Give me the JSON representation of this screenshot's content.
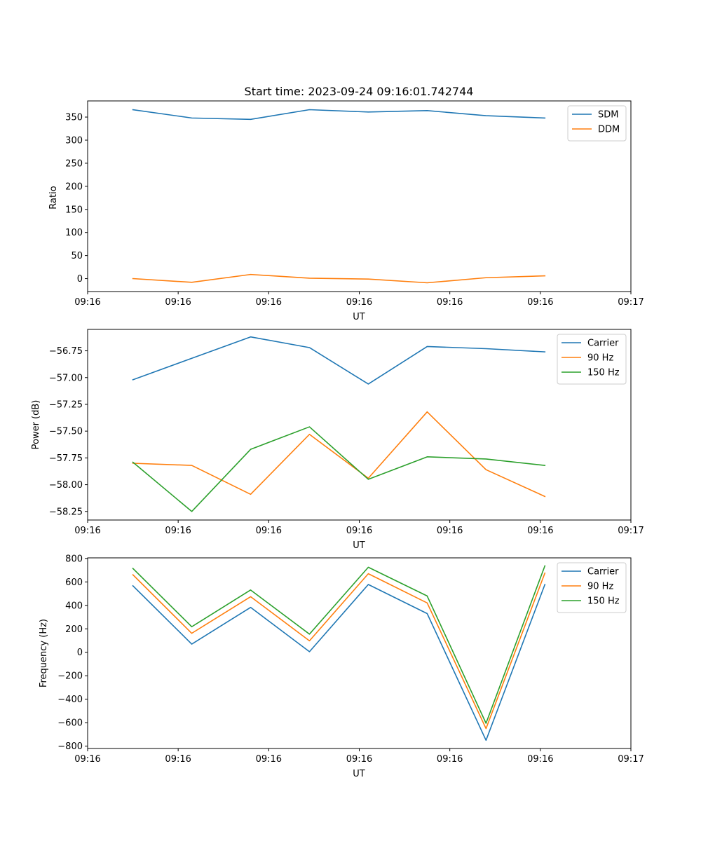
{
  "chart_data": [
    {
      "type": "line",
      "title": "Start time: 2023-09-24 09:16:01.742744",
      "xlabel": "UT",
      "ylabel": "Ratio",
      "xlim": [
        -1.0,
        5.0
      ],
      "ylim": [
        -28,
        385
      ],
      "x": [
        -0.5,
        0.15,
        0.8,
        1.45,
        2.1,
        2.75,
        3.4,
        4.05
      ],
      "xticks": [
        -1,
        0,
        1,
        2,
        3,
        4,
        5
      ],
      "xtick_labels": [
        "09:16",
        "09:16",
        "09:16",
        "09:16",
        "09:16",
        "09:16",
        "09:17"
      ],
      "yticks": [
        0,
        50,
        100,
        150,
        200,
        250,
        300,
        350
      ],
      "ytick_labels": [
        "0",
        "50",
        "100",
        "150",
        "200",
        "250",
        "300",
        "350"
      ],
      "legend_position": "top-right",
      "grid": false,
      "series": [
        {
          "name": "SDM",
          "color": "#1f77b4",
          "values": [
            366,
            348,
            345,
            366,
            361,
            364,
            353,
            348
          ]
        },
        {
          "name": "DDM",
          "color": "#ff7f0e",
          "values": [
            0,
            -8,
            9,
            1,
            -1,
            -9,
            2,
            6
          ]
        }
      ]
    },
    {
      "type": "line",
      "title": "",
      "xlabel": "UT",
      "ylabel": "Power (dB)",
      "xlim": [
        -1.0,
        5.0
      ],
      "ylim": [
        -58.33,
        -56.55
      ],
      "x": [
        -0.5,
        0.15,
        0.8,
        1.45,
        2.1,
        2.75,
        3.4,
        4.05
      ],
      "xticks": [
        -1,
        0,
        1,
        2,
        3,
        4,
        5
      ],
      "xtick_labels": [
        "09:16",
        "09:16",
        "09:16",
        "09:16",
        "09:16",
        "09:16",
        "09:17"
      ],
      "yticks": [
        -58.25,
        -58.0,
        -57.75,
        -57.5,
        -57.25,
        -57.0,
        -56.75
      ],
      "ytick_labels": [
        "−58.25",
        "−58.00",
        "−57.75",
        "−57.50",
        "−57.25",
        "−57.00",
        "−56.75"
      ],
      "legend_position": "top-right",
      "grid": false,
      "series": [
        {
          "name": "Carrier",
          "color": "#1f77b4",
          "values": [
            -57.02,
            -56.82,
            -56.62,
            -56.72,
            -57.06,
            -56.71,
            -56.73,
            -56.76
          ]
        },
        {
          "name": "90 Hz",
          "color": "#ff7f0e",
          "values": [
            -57.8,
            -57.82,
            -58.09,
            -57.53,
            -57.94,
            -57.32,
            -57.86,
            -58.11
          ]
        },
        {
          "name": "150 Hz",
          "color": "#2ca02c",
          "values": [
            -57.79,
            -58.25,
            -57.67,
            -57.46,
            -57.95,
            -57.74,
            -57.76,
            -57.82
          ]
        }
      ]
    },
    {
      "type": "line",
      "title": "",
      "xlabel": "UT",
      "ylabel": "Frequency (Hz)",
      "xlim": [
        -1.0,
        5.0
      ],
      "ylim": [
        -820,
        805
      ],
      "x": [
        -0.5,
        0.15,
        0.8,
        1.45,
        2.1,
        2.75,
        3.4,
        4.05
      ],
      "xticks": [
        -1,
        0,
        1,
        2,
        3,
        4,
        5
      ],
      "xtick_labels": [
        "09:16",
        "09:16",
        "09:16",
        "09:16",
        "09:16",
        "09:16",
        "09:17"
      ],
      "yticks": [
        -800,
        -600,
        -400,
        -200,
        0,
        200,
        400,
        600,
        800
      ],
      "ytick_labels": [
        "−800",
        "−600",
        "−400",
        "−200",
        "0",
        "200",
        "400",
        "600",
        "800"
      ],
      "legend_position": "top-right",
      "grid": false,
      "series": [
        {
          "name": "Carrier",
          "color": "#1f77b4",
          "values": [
            567,
            70,
            383,
            5,
            578,
            330,
            -750,
            578
          ]
        },
        {
          "name": "90 Hz",
          "color": "#ff7f0e",
          "values": [
            661,
            162,
            474,
            98,
            670,
            421,
            -650,
            675
          ]
        },
        {
          "name": "150 Hz",
          "color": "#2ca02c",
          "values": [
            715,
            218,
            531,
            155,
            725,
            480,
            -605,
            737
          ]
        }
      ]
    }
  ]
}
